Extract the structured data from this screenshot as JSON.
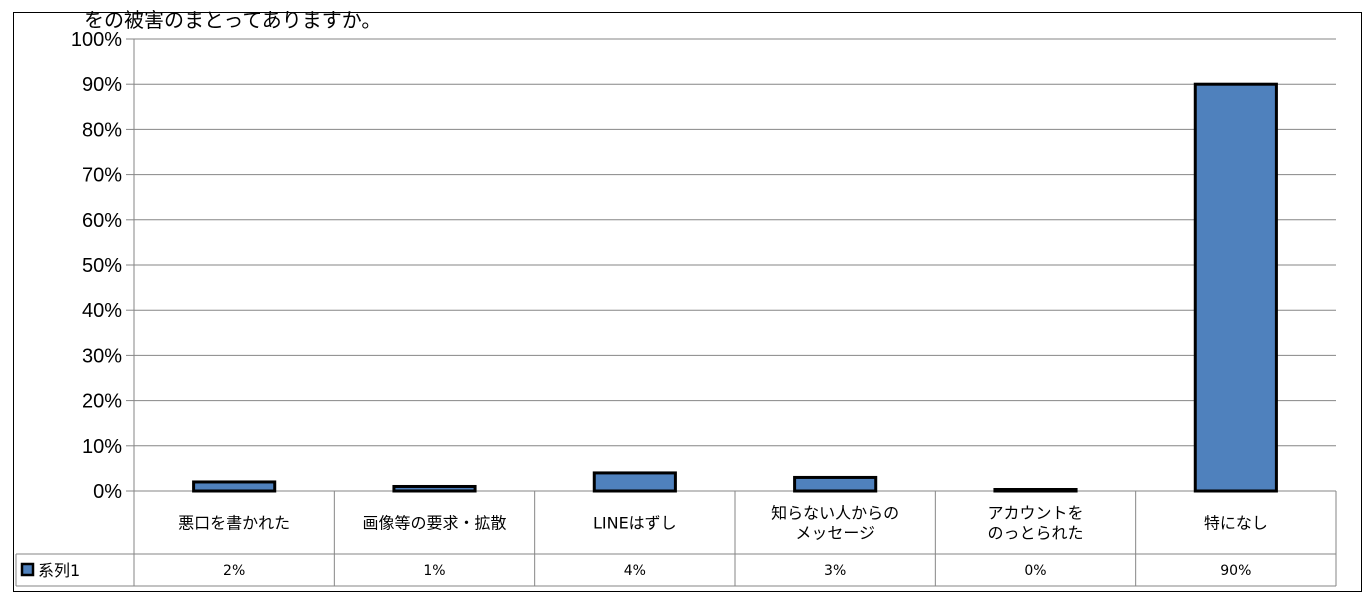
{
  "top_caption": "をの被害のまとってありますか。",
  "chart_data": {
    "type": "bar",
    "title": "",
    "xlabel": "",
    "ylabel": "",
    "ylim": [
      0,
      100
    ],
    "y_ticks": [
      "0%",
      "10%",
      "20%",
      "30%",
      "40%",
      "50%",
      "60%",
      "70%",
      "80%",
      "90%",
      "100%"
    ],
    "grid": true,
    "categories": [
      [
        "悪口を書かれた"
      ],
      [
        "画像等の要求・拡散"
      ],
      [
        "LINEはずし"
      ],
      [
        "知らない人からの",
        "メッセージ"
      ],
      [
        "アカウントを",
        "のっとられた"
      ],
      [
        "特になし"
      ]
    ],
    "series": [
      {
        "name": "系列1",
        "values": [
          2,
          1,
          4,
          3,
          0,
          90
        ],
        "labels": [
          "2%",
          "1%",
          "4%",
          "3%",
          "0%",
          "90%"
        ],
        "color": "#4F81BD"
      }
    ],
    "legend_placement": "data-table-left"
  }
}
